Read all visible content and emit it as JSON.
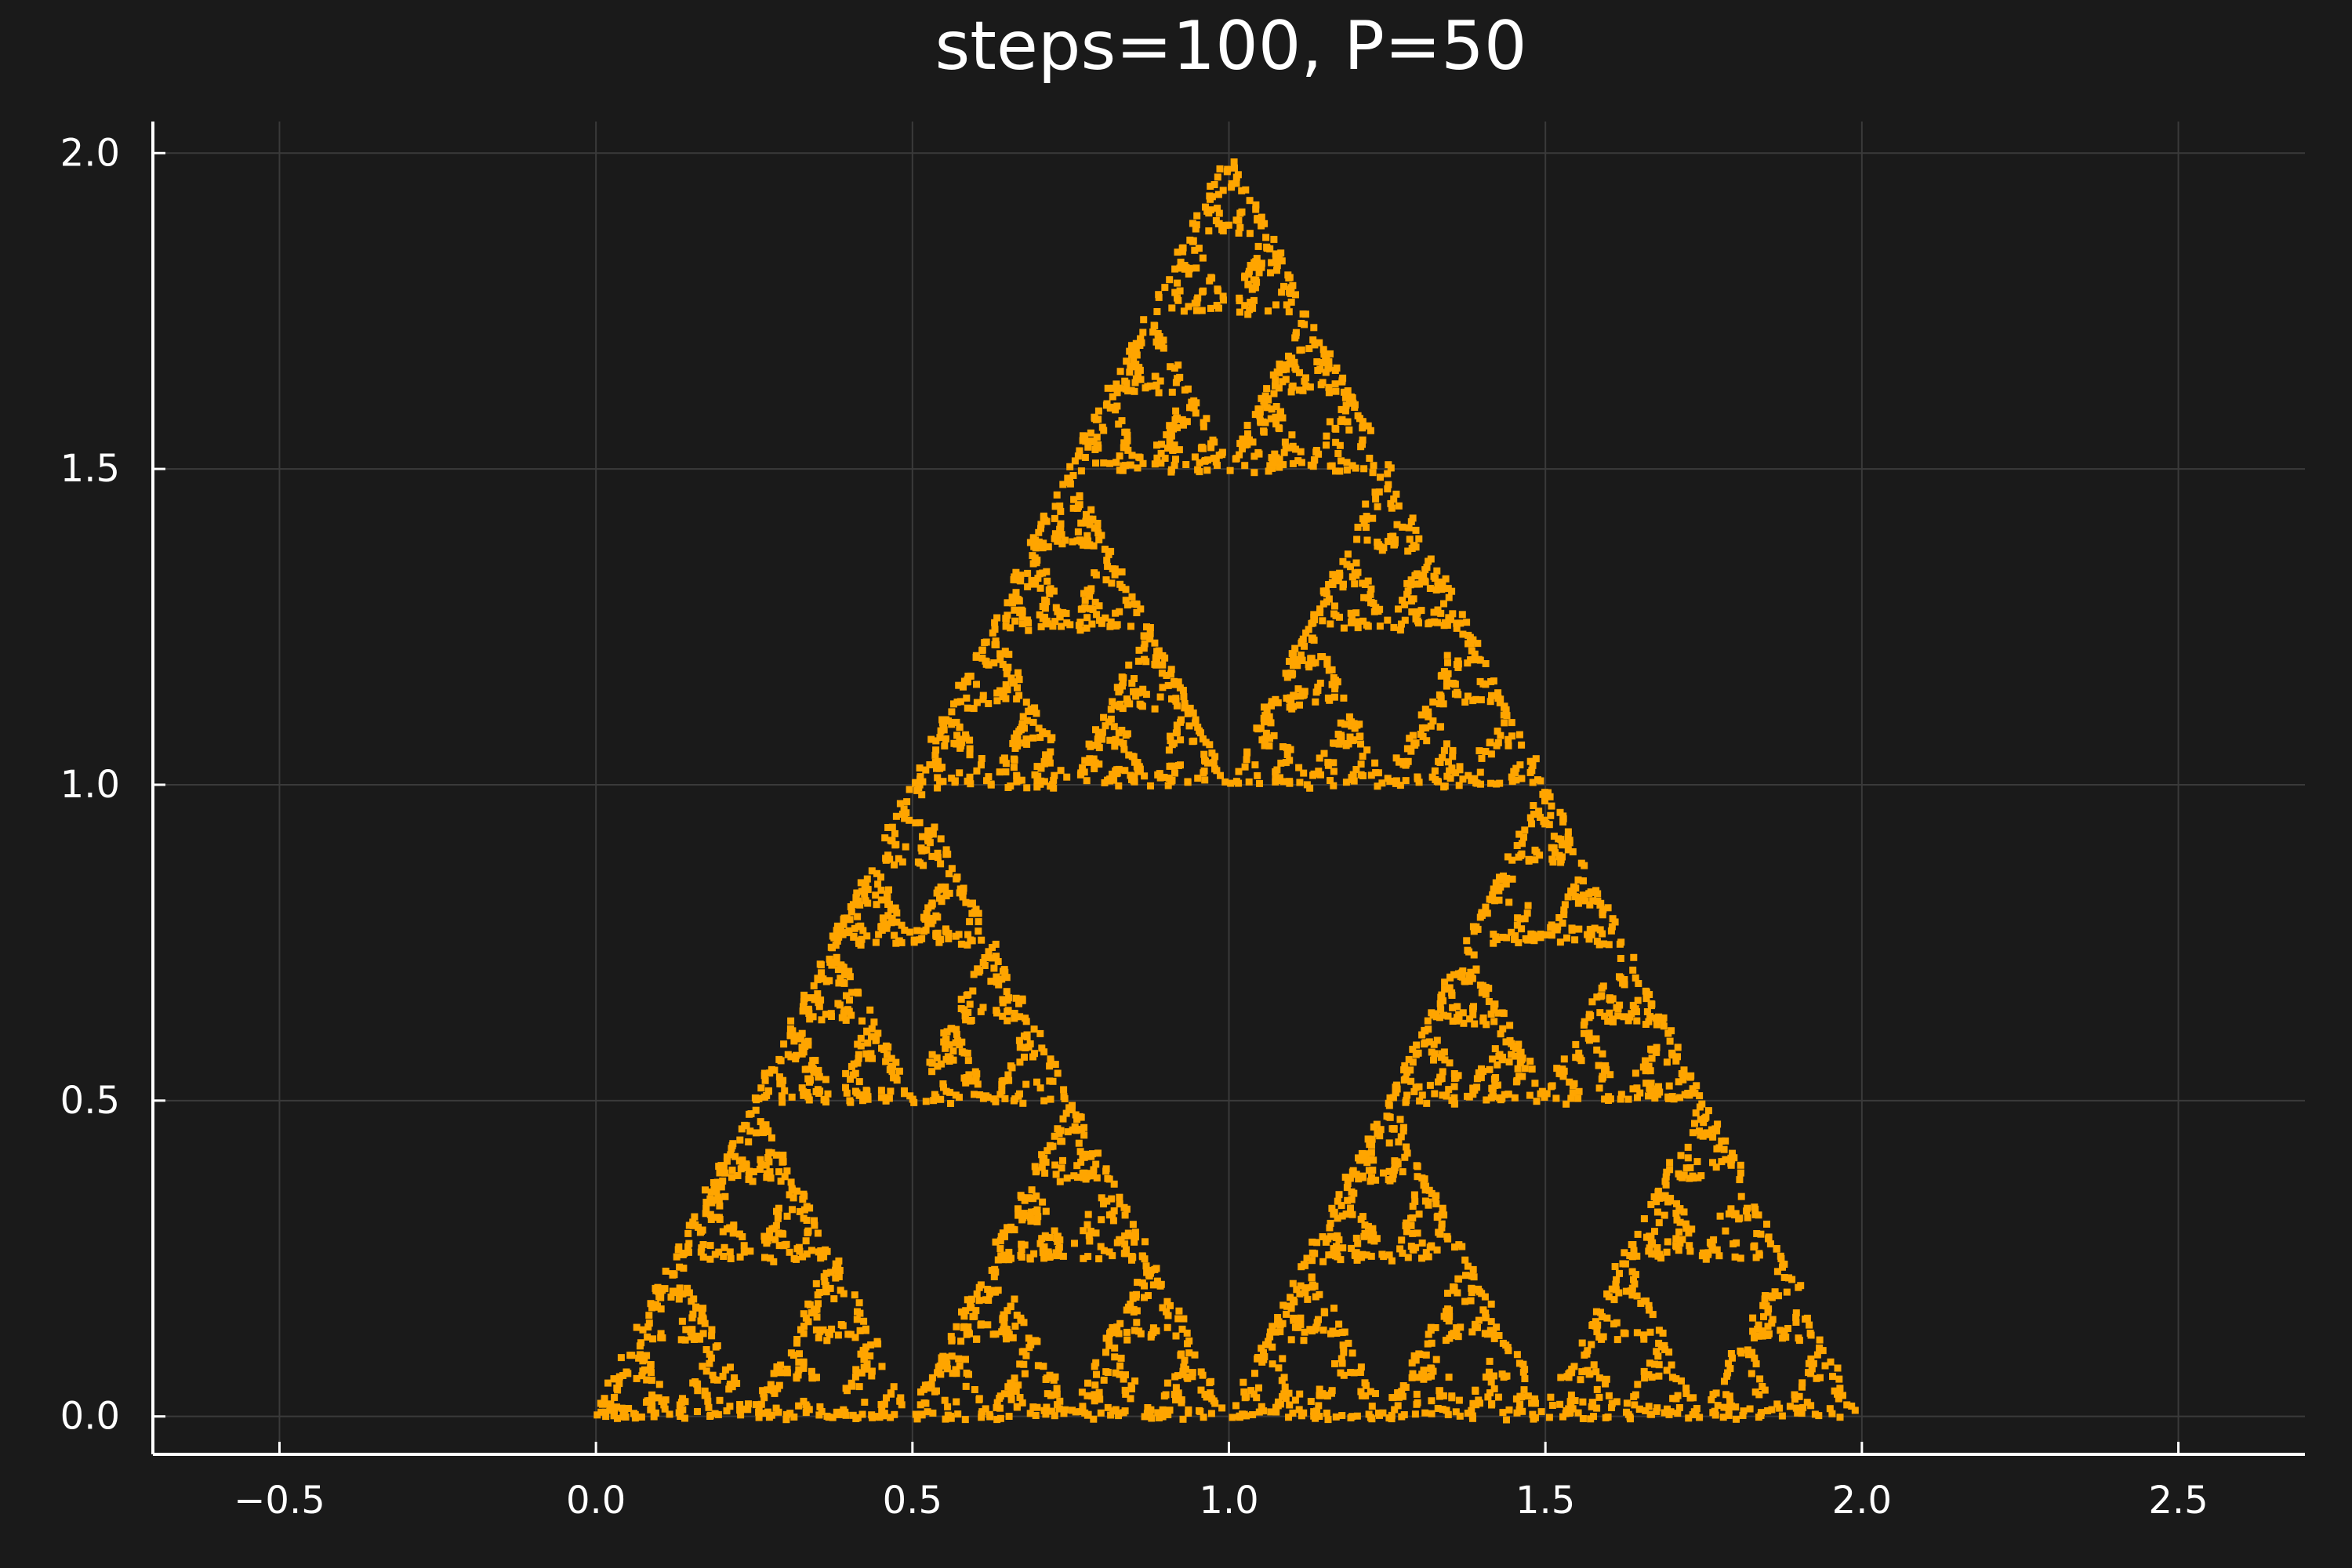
{
  "chart_data": {
    "type": "scatter",
    "title": "steps=100, P=50",
    "xlabel": "",
    "ylabel": "",
    "xlim": [
      -0.7,
      2.7
    ],
    "ylim": [
      -0.06,
      2.05
    ],
    "xticks": [
      -0.5,
      0.0,
      0.5,
      1.0,
      1.5,
      2.0,
      2.5
    ],
    "xtick_labels": [
      "−0.5",
      "0.0",
      "0.5",
      "1.0",
      "1.5",
      "2.0",
      "2.5"
    ],
    "yticks": [
      0.0,
      0.5,
      1.0,
      1.5,
      2.0
    ],
    "ytick_labels": [
      "0.0",
      "0.5",
      "1.0",
      "1.5",
      "2.0"
    ],
    "grid": true,
    "legend": "none",
    "series": [
      {
        "description": "Sierpinski triangle chaos-game points",
        "color": "#FFA500",
        "vertices": [
          [
            0.0,
            0.0
          ],
          [
            2.0,
            0.0
          ],
          [
            1.0,
            2.0
          ]
        ],
        "point_count": 5000
      }
    ],
    "colors": {
      "background": "#1a1a1a",
      "axis": "#ffffff",
      "grid": "#3a3a3a",
      "points": "#FFA500"
    }
  }
}
